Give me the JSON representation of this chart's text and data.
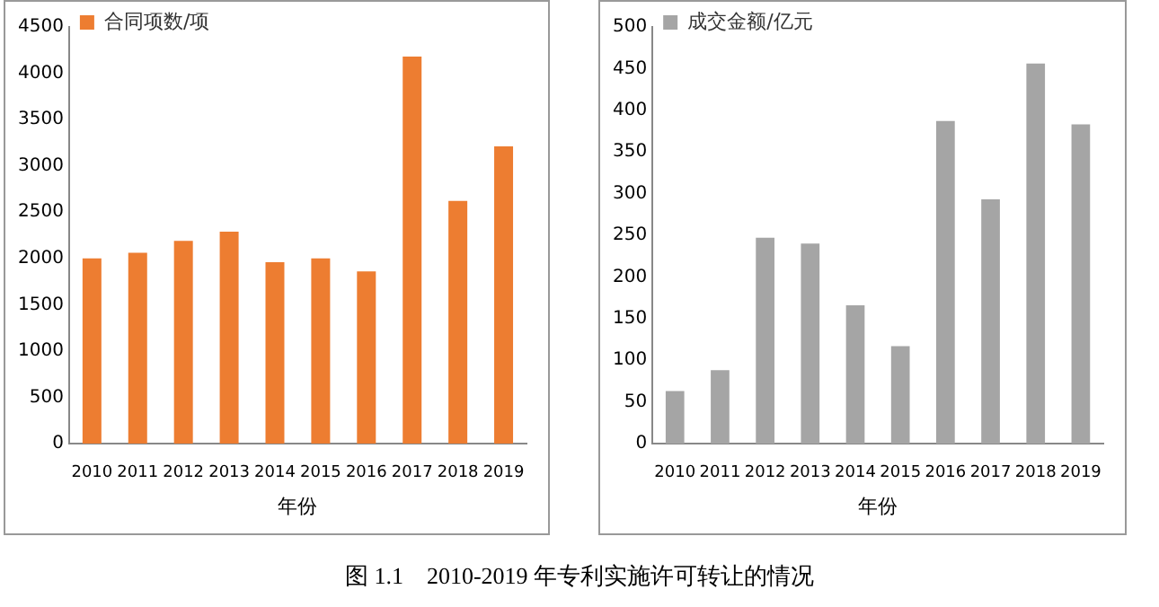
{
  "chart_data": [
    {
      "type": "bar",
      "xlabel": "年份",
      "categories": [
        "2010",
        "2011",
        "2012",
        "2013",
        "2014",
        "2015",
        "2016",
        "2017",
        "2018",
        "2019"
      ],
      "series": [
        {
          "name": "合同项数/项",
          "color": "#ed7d31",
          "values": [
            2000,
            2060,
            2190,
            2290,
            1960,
            2000,
            1860,
            4180,
            2620,
            3210
          ]
        }
      ],
      "ylim": [
        0,
        4500
      ],
      "yticks": [
        0,
        500,
        1000,
        1500,
        2000,
        2500,
        3000,
        3500,
        4000,
        4500
      ],
      "grid": false,
      "legend": "top left",
      "annotations": [
        "图 1.1    2010-2019 年专利实施许可转让的情况"
      ]
    },
    {
      "type": "bar",
      "xlabel": "年份",
      "categories": [
        "2010",
        "2011",
        "2012",
        "2013",
        "2014",
        "2015",
        "2016",
        "2017",
        "2018",
        "2019"
      ],
      "series": [
        {
          "name": "成交金额/亿元",
          "color": "#a5a5a5",
          "values": [
            63,
            88,
            247,
            240,
            166,
            117,
            387,
            293,
            456,
            383
          ]
        }
      ],
      "ylim": [
        0,
        500
      ],
      "yticks": [
        0,
        50,
        100,
        150,
        200,
        250,
        300,
        350,
        400,
        450,
        500
      ],
      "grid": false,
      "legend": "top left"
    }
  ]
}
